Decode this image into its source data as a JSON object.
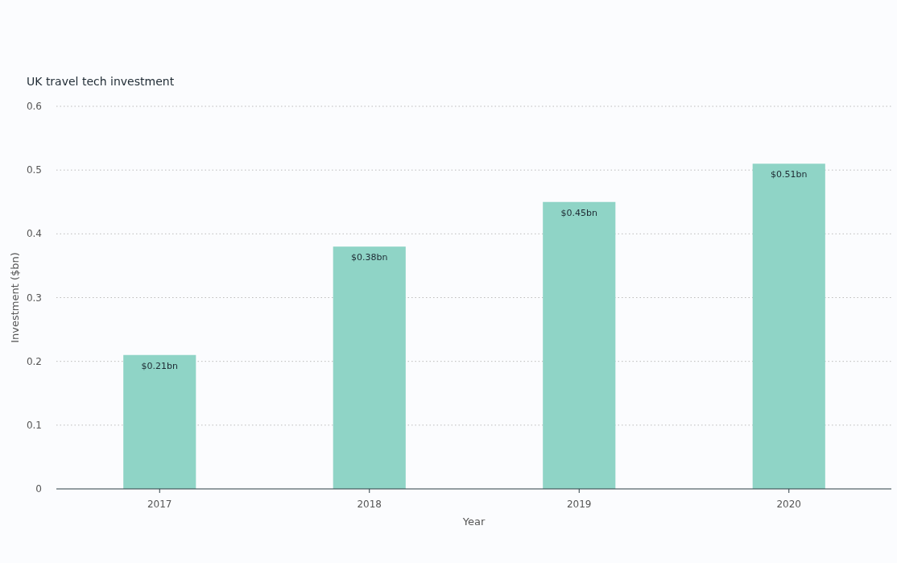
{
  "chart_data": {
    "type": "bar",
    "title": "UK travel tech investment",
    "xlabel": "Year",
    "ylabel": "Investment ($bn)",
    "categories": [
      "2017",
      "2018",
      "2019",
      "2020"
    ],
    "values": [
      0.21,
      0.38,
      0.45,
      0.51
    ],
    "value_labels": [
      "$0.21bn",
      "$0.38bn",
      "$0.45bn",
      "$0.51bn"
    ],
    "color": "#8fd4c6",
    "ylim": [
      0,
      0.6
    ],
    "yticks": [
      0,
      0.1,
      0.2,
      0.3,
      0.4,
      0.5,
      0.6
    ],
    "grid": "y"
  }
}
